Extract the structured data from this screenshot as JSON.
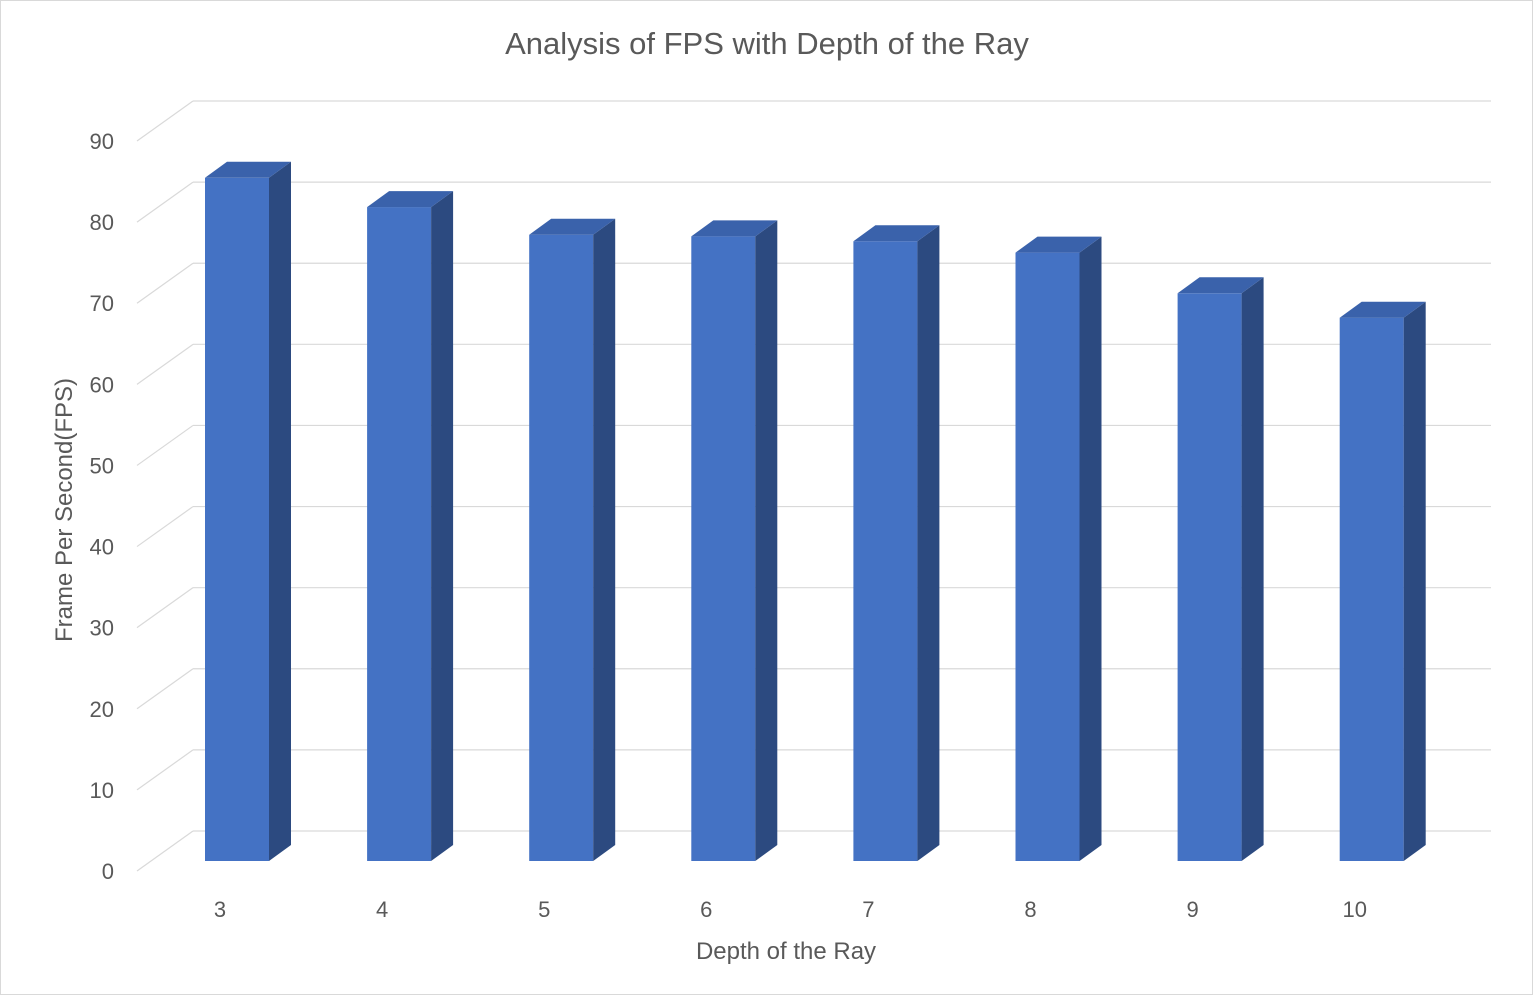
{
  "chart_data": {
    "type": "bar",
    "style": "3d-column",
    "title": "Analysis of FPS with Depth of the Ray",
    "xlabel": "Depth of the Ray",
    "ylabel": "Frame Per Second(FPS)",
    "categories": [
      "3",
      "4",
      "5",
      "6",
      "7",
      "8",
      "9",
      "10"
    ],
    "series": [
      {
        "values": [
          84,
          80.4,
          77,
          76.8,
          76.2,
          74.8,
          69.8,
          66.8
        ]
      }
    ],
    "ylim": [
      0,
      90
    ],
    "yticks": [
      0,
      10,
      20,
      30,
      40,
      50,
      60,
      70,
      80,
      90
    ],
    "grid": true,
    "legend": "none",
    "colors": {
      "bar_front": "#4472C4",
      "bar_side": "#2C4A80",
      "bar_top": "#3A62AB",
      "grid": "#d9d9d9",
      "text": "#595959"
    }
  }
}
